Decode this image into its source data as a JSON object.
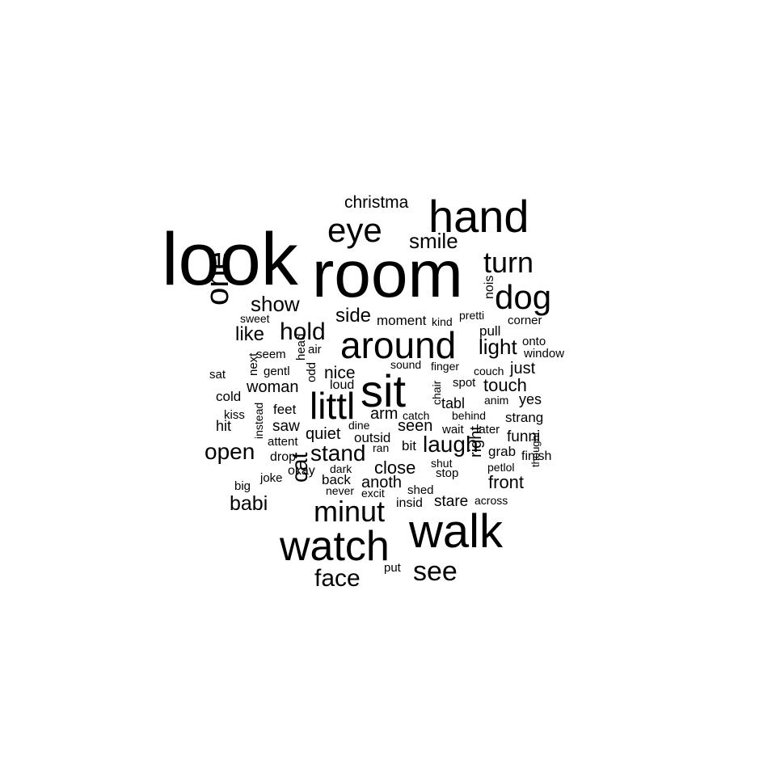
{
  "words": [
    {
      "text": "look"
    },
    {
      "text": "room"
    },
    {
      "text": "hand"
    },
    {
      "text": "walk"
    },
    {
      "text": "watch"
    },
    {
      "text": "sit"
    },
    {
      "text": "around"
    },
    {
      "text": "littl"
    },
    {
      "text": "eye"
    },
    {
      "text": "dog"
    },
    {
      "text": "turn"
    },
    {
      "text": "one"
    },
    {
      "text": "minut"
    },
    {
      "text": "see"
    },
    {
      "text": "face"
    },
    {
      "text": "stand"
    },
    {
      "text": "open"
    },
    {
      "text": "hold"
    },
    {
      "text": "laugh"
    },
    {
      "text": "smile"
    },
    {
      "text": "show"
    },
    {
      "text": "light"
    },
    {
      "text": "cat"
    },
    {
      "text": "babi"
    },
    {
      "text": "side"
    },
    {
      "text": "like"
    },
    {
      "text": "christma"
    },
    {
      "text": "close"
    },
    {
      "text": "front"
    },
    {
      "text": "touch"
    },
    {
      "text": "nice"
    },
    {
      "text": "woman"
    },
    {
      "text": "quiet"
    },
    {
      "text": "anoth"
    },
    {
      "text": "right"
    },
    {
      "text": "seen"
    },
    {
      "text": "arm"
    },
    {
      "text": "just"
    },
    {
      "text": "funni"
    },
    {
      "text": "stare"
    },
    {
      "text": "yes"
    },
    {
      "text": "tabl"
    },
    {
      "text": "strang"
    },
    {
      "text": "saw"
    },
    {
      "text": "hit"
    },
    {
      "text": "cold"
    },
    {
      "text": "feet"
    },
    {
      "text": "moment"
    },
    {
      "text": "pull"
    },
    {
      "text": "bit"
    },
    {
      "text": "outsid"
    },
    {
      "text": "back"
    },
    {
      "text": "grab"
    },
    {
      "text": "insid"
    },
    {
      "text": "nois"
    },
    {
      "text": "finish"
    },
    {
      "text": "drop"
    },
    {
      "text": "okay"
    },
    {
      "text": "window"
    },
    {
      "text": "onto"
    },
    {
      "text": "corner"
    },
    {
      "text": "pretti"
    },
    {
      "text": "kind"
    },
    {
      "text": "sweet"
    },
    {
      "text": "seem"
    },
    {
      "text": "air"
    },
    {
      "text": "next"
    },
    {
      "text": "head"
    },
    {
      "text": "gentl"
    },
    {
      "text": "odd"
    },
    {
      "text": "sat"
    },
    {
      "text": "loud"
    },
    {
      "text": "sound"
    },
    {
      "text": "finger"
    },
    {
      "text": "couch"
    },
    {
      "text": "spot"
    },
    {
      "text": "chair"
    },
    {
      "text": "anim"
    },
    {
      "text": "kiss"
    },
    {
      "text": "instead"
    },
    {
      "text": "catch"
    },
    {
      "text": "behind"
    },
    {
      "text": "dine"
    },
    {
      "text": "wait"
    },
    {
      "text": "later"
    },
    {
      "text": "attent"
    },
    {
      "text": "ran"
    },
    {
      "text": "shut"
    },
    {
      "text": "stop"
    },
    {
      "text": "petlol"
    },
    {
      "text": "joke"
    },
    {
      "text": "dark"
    },
    {
      "text": "big"
    },
    {
      "text": "never"
    },
    {
      "text": "excit"
    },
    {
      "text": "shed"
    },
    {
      "text": "across"
    },
    {
      "text": "thought"
    },
    {
      "text": "put"
    }
  ]
}
